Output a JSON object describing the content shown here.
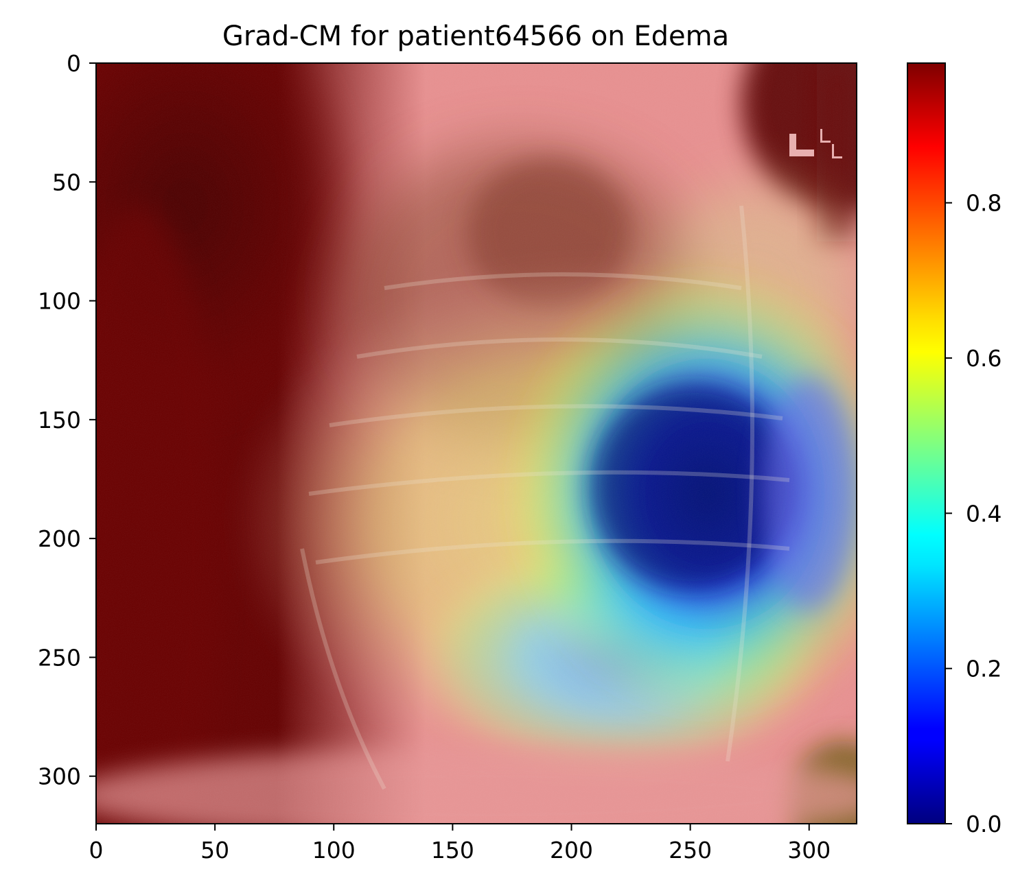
{
  "title": "Grad-CM for patient64566 on Edema",
  "image": {
    "description_icon": "xray-heatmap-overlay",
    "marker_text": "L"
  },
  "x_axis": {
    "ticks": [
      "0",
      "50",
      "100",
      "150",
      "200",
      "250",
      "300"
    ],
    "tick_values": [
      0,
      50,
      100,
      150,
      200,
      250,
      300
    ],
    "range": [
      0,
      320
    ]
  },
  "y_axis": {
    "ticks": [
      "0",
      "50",
      "100",
      "150",
      "200",
      "250",
      "300"
    ],
    "tick_values": [
      0,
      50,
      100,
      150,
      200,
      250,
      300
    ],
    "range": [
      0,
      320
    ],
    "inverted": true
  },
  "colorbar": {
    "colormap": "jet",
    "ticks": [
      "0.0",
      "0.2",
      "0.4",
      "0.6",
      "0.8"
    ],
    "tick_values": [
      0.0,
      0.2,
      0.4,
      0.6,
      0.8
    ],
    "range": [
      0.0,
      0.98
    ]
  },
  "colors": {
    "jet_dark_red": "#800000",
    "jet_red": "#ff0000",
    "jet_orange": "#ff8000",
    "jet_yellow": "#ffff00",
    "jet_green": "#80ff80",
    "jet_cyan": "#00ffff",
    "jet_blue": "#0000ff",
    "jet_dark_blue": "#000080"
  }
}
